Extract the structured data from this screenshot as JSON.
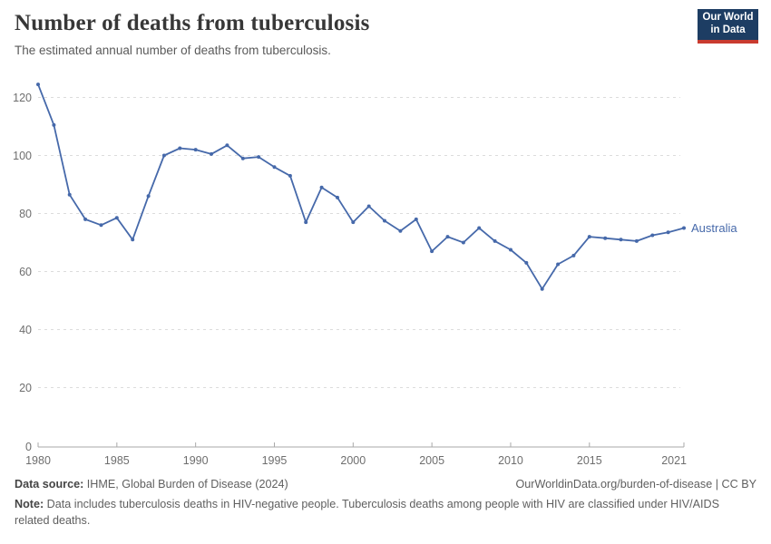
{
  "header": {
    "title": "Number of deaths from tuberculosis",
    "subtitle": "The estimated annual number of deaths from tuberculosis.",
    "logo": {
      "line1": "Our World",
      "line2": "in Data",
      "bg": "#1d3d63",
      "accent": "#c93b2f"
    }
  },
  "chart_data": {
    "type": "line",
    "title": "Number of deaths from tuberculosis",
    "xlabel": "",
    "ylabel": "",
    "xlim": [
      1980,
      2021
    ],
    "ylim": [
      0,
      125
    ],
    "grid": "horizontal-dashed",
    "legend_position": "end-of-line-right",
    "x_ticks": [
      1980,
      1985,
      1990,
      1995,
      2000,
      2005,
      2010,
      2015,
      2021
    ],
    "y_ticks": [
      0,
      20,
      40,
      60,
      80,
      100,
      120
    ],
    "x": [
      1980,
      1981,
      1982,
      1983,
      1984,
      1985,
      1986,
      1987,
      1988,
      1989,
      1990,
      1991,
      1992,
      1993,
      1994,
      1995,
      1996,
      1997,
      1998,
      1999,
      2000,
      2001,
      2002,
      2003,
      2004,
      2005,
      2006,
      2007,
      2008,
      2009,
      2010,
      2011,
      2012,
      2013,
      2014,
      2015,
      2016,
      2017,
      2018,
      2019,
      2020,
      2021
    ],
    "series": [
      {
        "name": "Australia",
        "color": "#4669aa",
        "values": [
          124.5,
          110.5,
          86.5,
          78,
          76,
          78.5,
          71,
          86,
          100,
          102.5,
          102,
          100.5,
          103.5,
          99,
          99.5,
          96,
          93,
          77,
          89,
          85.5,
          77,
          82.5,
          77.5,
          74,
          78,
          67,
          72,
          70,
          75,
          70.5,
          67.5,
          63,
          54,
          62.5,
          65.5,
          72,
          71.5,
          71,
          70.5,
          72.5,
          73.5,
          75
        ]
      }
    ]
  },
  "footer": {
    "source_label": "Data source:",
    "source_text": " IHME, Global Burden of Disease (2024)",
    "license_text": "OurWorldinData.org/burden-of-disease | CC BY",
    "note_label": "Note:",
    "note_text": " Data includes tuberculosis deaths in HIV-negative people. Tuberculosis deaths among people with HIV are classified under HIV/AIDS related deaths."
  }
}
